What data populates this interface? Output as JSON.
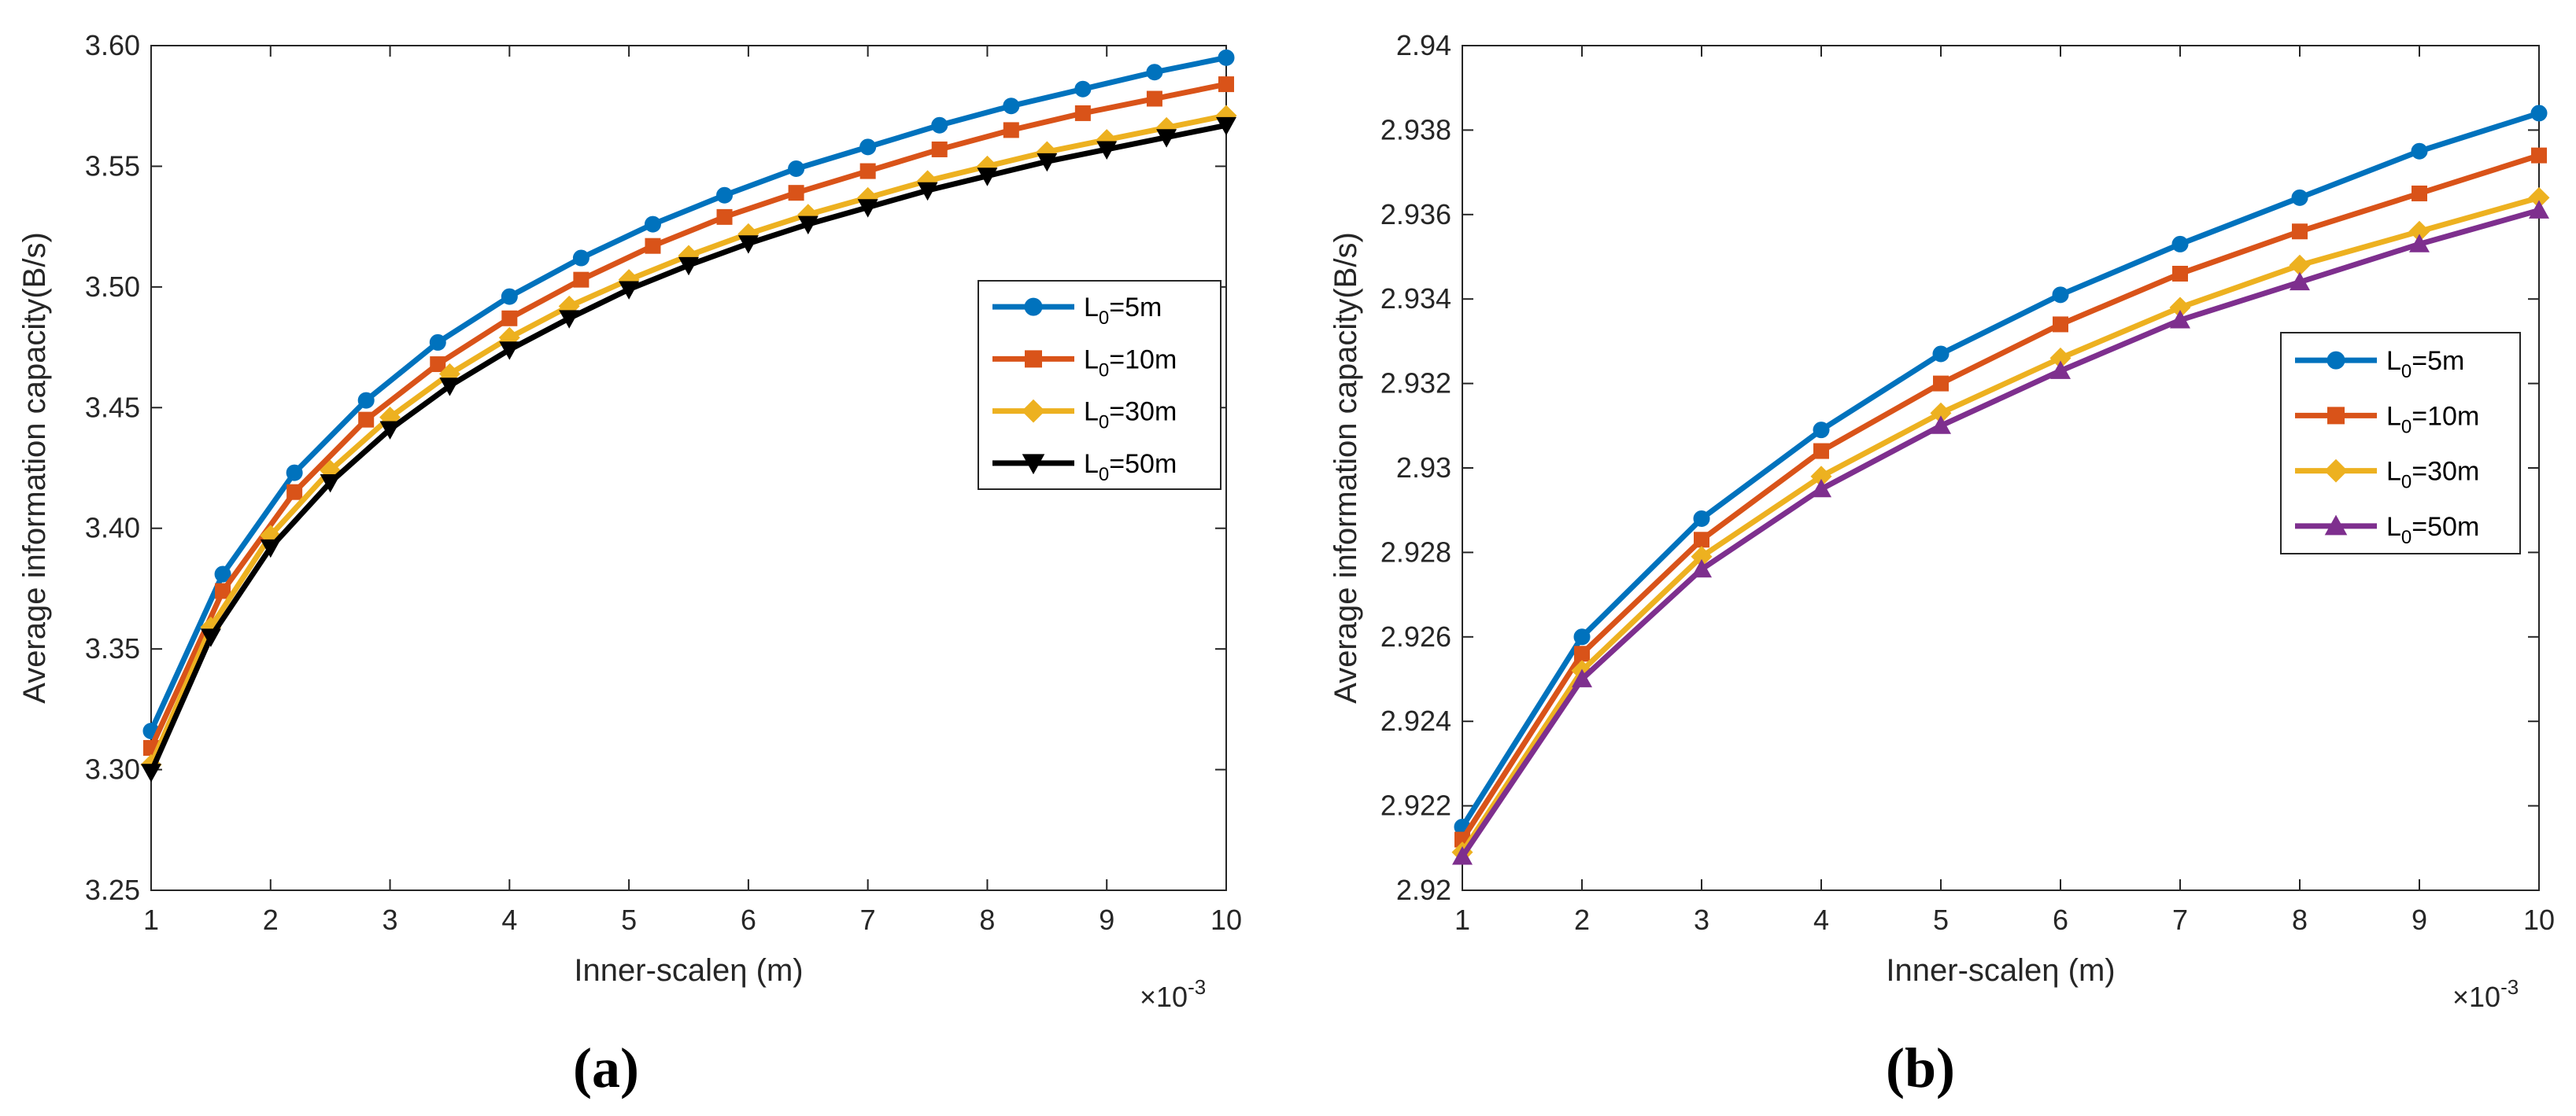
{
  "chart_data": [
    {
      "type": "line",
      "panel_label": "(a)",
      "xlabel": "Inner-scaleη (m)",
      "ylabel": "Average information capacity(B/s)",
      "x_multiplier": "×10",
      "x_multiplier_exp": "-3",
      "xlim": [
        1,
        10
      ],
      "ylim": [
        3.25,
        3.6
      ],
      "xticks": [
        "1",
        "2",
        "3",
        "4",
        "5",
        "6",
        "7",
        "8",
        "9",
        "10"
      ],
      "yticks": [
        "3.25",
        "3.30",
        "3.35",
        "3.40",
        "3.45",
        "3.50",
        "3.55",
        "3.60"
      ],
      "legend_position": "right-middle",
      "series": [
        {
          "name": "L0=5m",
          "legend_main": "L",
          "legend_sub": "0",
          "legend_rest": "=5m",
          "color": "#0072BD",
          "marker": "circle",
          "x": [
            1,
            1.6,
            2.2,
            2.8,
            3.4,
            4.0,
            4.6,
            5.2,
            5.8,
            6.4,
            7.0,
            7.6,
            8.2,
            8.8,
            9.4,
            10.0
          ],
          "y": [
            3.316,
            3.381,
            3.423,
            3.453,
            3.477,
            3.496,
            3.512,
            3.526,
            3.538,
            3.549,
            3.558,
            3.567,
            3.575,
            3.582,
            3.589,
            3.595
          ]
        },
        {
          "name": "L0=10m",
          "legend_main": "L",
          "legend_sub": "0",
          "legend_rest": "=10m",
          "color": "#D95319",
          "marker": "square",
          "x": [
            1,
            1.6,
            2.2,
            2.8,
            3.4,
            4.0,
            4.6,
            5.2,
            5.8,
            6.4,
            7.0,
            7.6,
            8.2,
            8.8,
            9.4,
            10.0
          ],
          "y": [
            3.309,
            3.374,
            3.415,
            3.445,
            3.468,
            3.487,
            3.503,
            3.517,
            3.529,
            3.539,
            3.548,
            3.557,
            3.565,
            3.572,
            3.578,
            3.584
          ]
        },
        {
          "name": "L0=30m",
          "legend_main": "L",
          "legend_sub": "0",
          "legend_rest": "=30m",
          "color": "#EDB120",
          "marker": "diamond",
          "x": [
            1,
            1.5,
            2.0,
            2.5,
            3.0,
            3.5,
            4.0,
            4.5,
            5.0,
            5.5,
            6.0,
            6.5,
            7.0,
            7.5,
            8.0,
            8.5,
            9.0,
            9.5,
            10.0
          ],
          "y": [
            3.302,
            3.359,
            3.397,
            3.424,
            3.446,
            3.464,
            3.479,
            3.492,
            3.503,
            3.513,
            3.522,
            3.53,
            3.537,
            3.544,
            3.55,
            3.556,
            3.561,
            3.566,
            3.571
          ]
        },
        {
          "name": "L0=50m",
          "legend_main": "L",
          "legend_sub": "0",
          "legend_rest": "=50m",
          "color": "#000000",
          "marker": "triangle-down",
          "x": [
            1,
            1.5,
            2.0,
            2.5,
            3.0,
            3.5,
            4.0,
            4.5,
            5.0,
            5.5,
            6.0,
            6.5,
            7.0,
            7.5,
            8.0,
            8.5,
            9.0,
            9.5,
            10.0
          ],
          "y": [
            3.299,
            3.355,
            3.392,
            3.419,
            3.441,
            3.459,
            3.474,
            3.487,
            3.499,
            3.509,
            3.518,
            3.526,
            3.533,
            3.54,
            3.546,
            3.552,
            3.557,
            3.562,
            3.567
          ]
        }
      ]
    },
    {
      "type": "line",
      "panel_label": "(b)",
      "xlabel": "Inner-scaleη (m)",
      "ylabel": "Average information capacity(B/s)",
      "x_multiplier": "×10",
      "x_multiplier_exp": "-3",
      "xlim": [
        1,
        10
      ],
      "ylim": [
        2.92,
        2.94
      ],
      "xticks": [
        "1",
        "2",
        "3",
        "4",
        "5",
        "6",
        "7",
        "8",
        "9",
        "10"
      ],
      "yticks": [
        "2.92",
        "2.922",
        "2.924",
        "2.926",
        "2.928",
        "2.93",
        "2.932",
        "2.934",
        "2.936",
        "2.938",
        "2.94"
      ],
      "legend_position": "right-middle",
      "series": [
        {
          "name": "L0=5m",
          "legend_main": "L",
          "legend_sub": "0",
          "legend_rest": "=5m",
          "color": "#0072BD",
          "marker": "circle",
          "x": [
            1,
            2,
            3,
            4,
            5,
            6,
            7,
            8,
            9,
            10
          ],
          "y": [
            2.9215,
            2.926,
            2.9288,
            2.9309,
            2.9327,
            2.9341,
            2.9353,
            2.9364,
            2.9375,
            2.9384
          ]
        },
        {
          "name": "L0=10m",
          "legend_main": "L",
          "legend_sub": "0",
          "legend_rest": "=10m",
          "color": "#D95319",
          "marker": "square",
          "x": [
            1,
            2,
            3,
            4,
            5,
            6,
            7,
            8,
            9,
            10
          ],
          "y": [
            2.9212,
            2.9256,
            2.9283,
            2.9304,
            2.932,
            2.9334,
            2.9346,
            2.9356,
            2.9365,
            2.9374
          ]
        },
        {
          "name": "L0=30m",
          "legend_main": "L",
          "legend_sub": "0",
          "legend_rest": "=30m",
          "color": "#EDB120",
          "marker": "diamond",
          "x": [
            1,
            2,
            3,
            4,
            5,
            6,
            7,
            8,
            9,
            10
          ],
          "y": [
            2.9209,
            2.9252,
            2.9279,
            2.9298,
            2.9313,
            2.9326,
            2.9338,
            2.9348,
            2.9356,
            2.9364
          ]
        },
        {
          "name": "L0=50m",
          "legend_main": "L",
          "legend_sub": "0",
          "legend_rest": "=50m",
          "color": "#7E2F8E",
          "marker": "triangle-up",
          "x": [
            1,
            2,
            3,
            4,
            5,
            6,
            7,
            8,
            9,
            10
          ],
          "y": [
            2.9208,
            2.925,
            2.9276,
            2.9295,
            2.931,
            2.9323,
            2.9335,
            2.9344,
            2.9353,
            2.9361
          ]
        }
      ]
    }
  ]
}
